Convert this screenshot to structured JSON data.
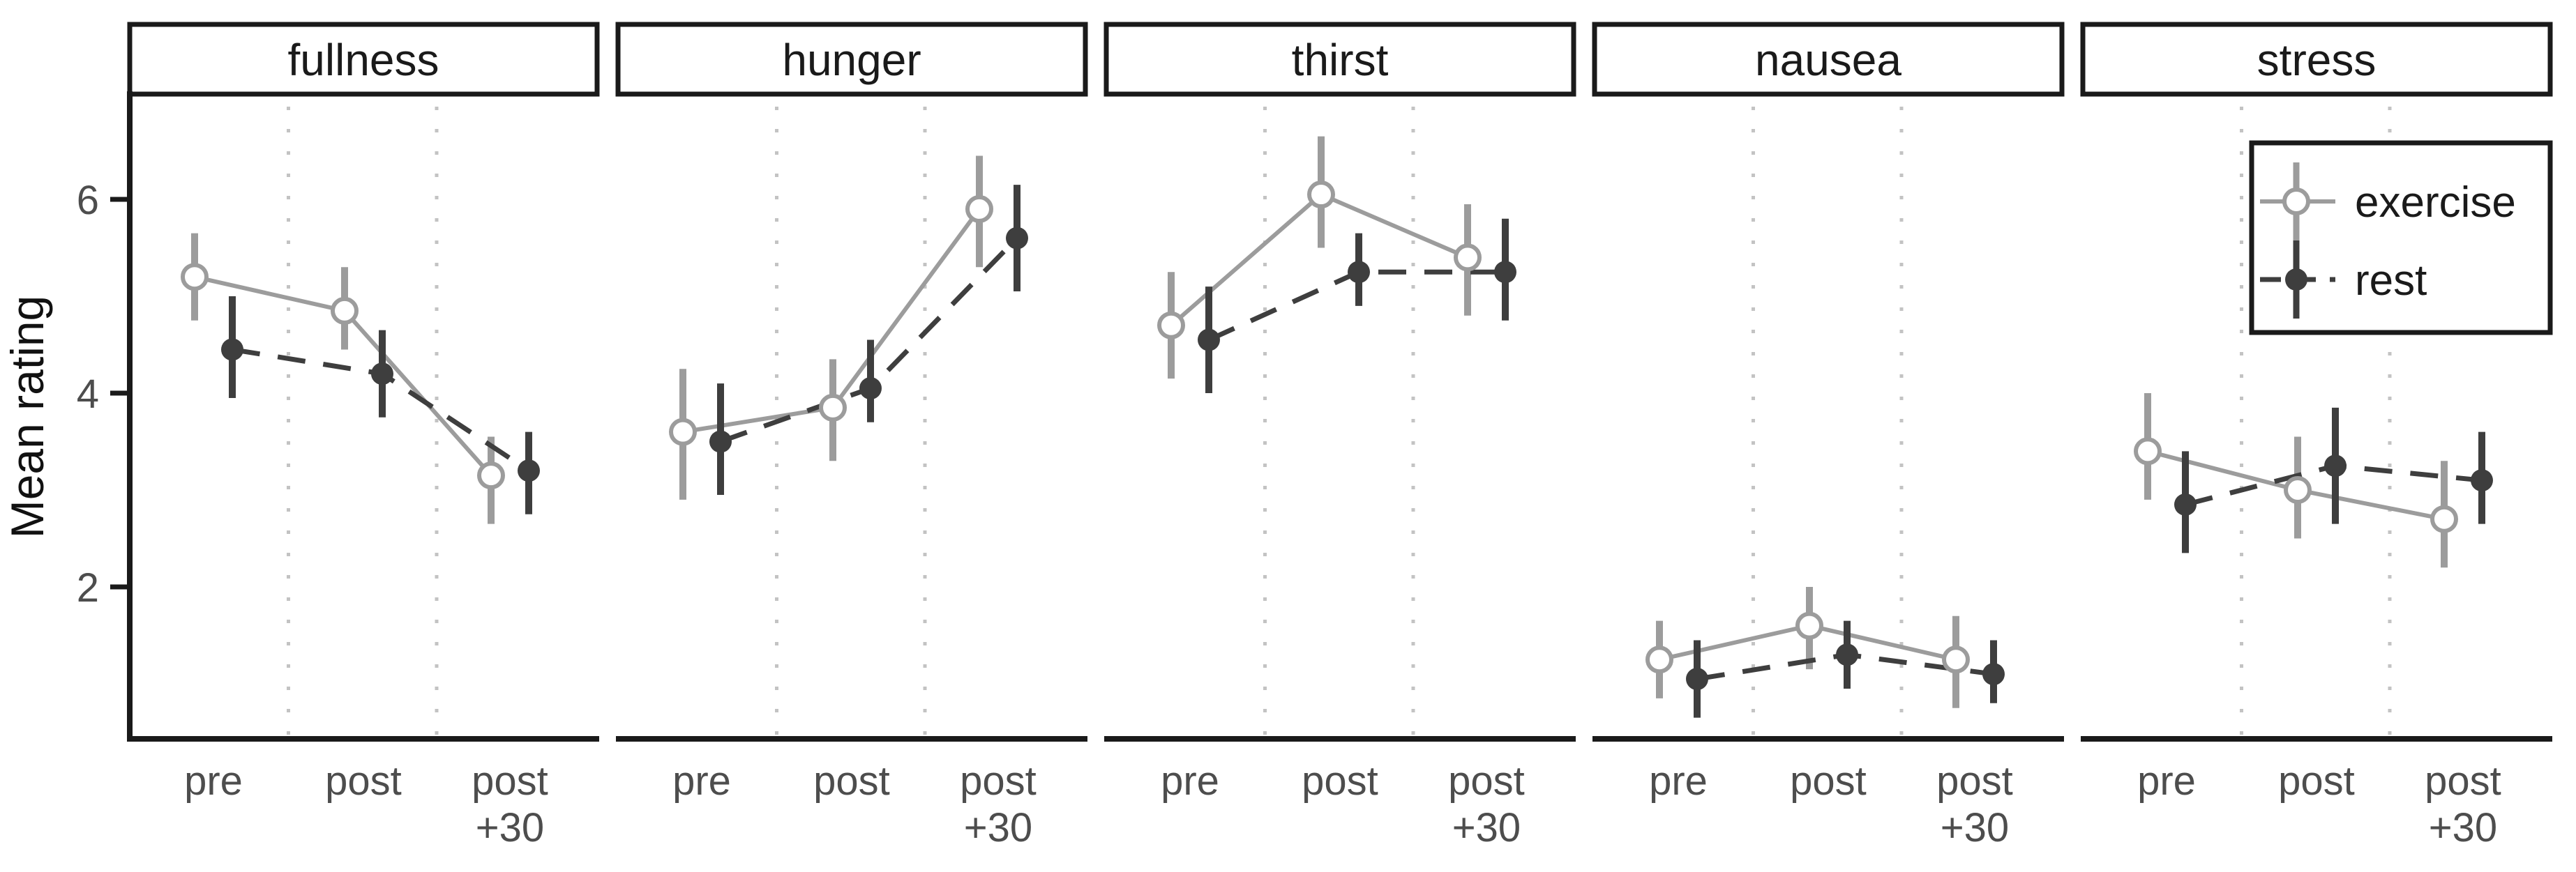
{
  "chart_data": {
    "type": "line",
    "title": "",
    "ylabel": "Mean rating",
    "xlabel": "",
    "categories": [
      "pre",
      "post",
      "post +30"
    ],
    "category_tick_lines": [
      [
        "pre"
      ],
      [
        "post"
      ],
      [
        "post",
        "+30"
      ]
    ],
    "yticks": [
      2,
      4,
      6
    ],
    "ylim": [
      0.4,
      7.1
    ],
    "grid": "dotted vertical lines between categories",
    "legend": {
      "position": "top-right inside last facet",
      "entries": [
        {
          "name": "exercise",
          "marker": "open-circle",
          "line": "solid"
        },
        {
          "name": "rest",
          "marker": "filled-circle",
          "line": "dashed"
        }
      ]
    },
    "colors": {
      "exercise": "#9c9c9c",
      "rest": "#3e3e3e",
      "grid": "#c3c3c3",
      "axis": "#1a1a1a",
      "tick_label": "#4d4d4d",
      "strip_border": "#1a1a1a",
      "background": "#ffffff"
    },
    "facets": [
      {
        "label": "fullness",
        "series": [
          {
            "name": "exercise",
            "values": [
              5.2,
              4.85,
              3.15
            ],
            "ci_low": [
              4.75,
              4.45,
              2.65
            ],
            "ci_high": [
              5.65,
              5.3,
              3.55
            ]
          },
          {
            "name": "rest",
            "values": [
              4.45,
              4.2,
              3.2
            ],
            "ci_low": [
              3.95,
              3.75,
              2.75
            ],
            "ci_high": [
              5.0,
              4.65,
              3.6
            ]
          }
        ]
      },
      {
        "label": "hunger",
        "series": [
          {
            "name": "exercise",
            "values": [
              3.6,
              3.85,
              5.9
            ],
            "ci_low": [
              2.9,
              3.3,
              5.3
            ],
            "ci_high": [
              4.25,
              4.35,
              6.45
            ]
          },
          {
            "name": "rest",
            "values": [
              3.5,
              4.05,
              5.6
            ],
            "ci_low": [
              2.95,
              3.7,
              5.05
            ],
            "ci_high": [
              4.1,
              4.55,
              6.15
            ]
          }
        ]
      },
      {
        "label": "thirst",
        "series": [
          {
            "name": "exercise",
            "values": [
              4.7,
              6.05,
              5.4
            ],
            "ci_low": [
              4.15,
              5.5,
              4.8
            ],
            "ci_high": [
              5.25,
              6.65,
              5.95
            ]
          },
          {
            "name": "rest",
            "values": [
              4.55,
              5.25,
              5.25
            ],
            "ci_low": [
              4.0,
              4.9,
              4.75
            ],
            "ci_high": [
              5.1,
              5.65,
              5.8
            ]
          }
        ]
      },
      {
        "label": "nausea",
        "series": [
          {
            "name": "exercise",
            "values": [
              1.25,
              1.6,
              1.25
            ],
            "ci_low": [
              0.85,
              1.15,
              0.75
            ],
            "ci_high": [
              1.65,
              2.0,
              1.7
            ]
          },
          {
            "name": "rest",
            "values": [
              1.05,
              1.3,
              1.1
            ],
            "ci_low": [
              0.65,
              0.95,
              0.8
            ],
            "ci_high": [
              1.45,
              1.65,
              1.45
            ]
          }
        ]
      },
      {
        "label": "stress",
        "series": [
          {
            "name": "exercise",
            "values": [
              3.4,
              3.0,
              2.7
            ],
            "ci_low": [
              2.9,
              2.5,
              2.2
            ],
            "ci_high": [
              4.0,
              3.55,
              3.3
            ]
          },
          {
            "name": "rest",
            "values": [
              2.85,
              3.25,
              3.1
            ],
            "ci_low": [
              2.35,
              2.65,
              2.65
            ],
            "ci_high": [
              3.4,
              3.85,
              3.6
            ]
          }
        ]
      }
    ]
  }
}
